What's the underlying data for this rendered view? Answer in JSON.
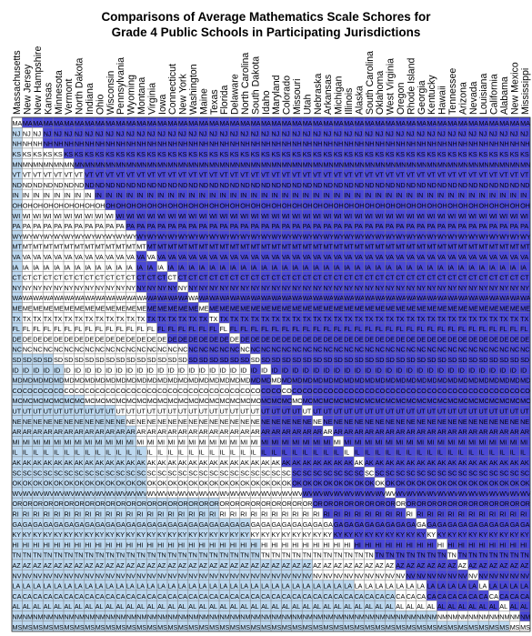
{
  "chart_data": {
    "type": "heatmap",
    "title": "Comparisons of Average Mathematics Scale Schores for",
    "subtitle": "Grade 4 Public Schools in Participating Jurisdictions",
    "columns": [
      "Massachusetts",
      "New Jersey",
      "New Hampshire",
      "Kansas",
      "Minnesota",
      "Vermont",
      "North Dakota",
      "Indiana",
      "Ohio",
      "Wisconsin",
      "Pennsylvania",
      "Wyoming",
      "Montana",
      "Virginia",
      "Iowa",
      "Connecticut",
      "New York",
      "Washington",
      "Maine",
      "Texas",
      "Florida",
      "Delaware",
      "North Carolina",
      "South Dakota",
      "Idaho",
      "Maryland",
      "Colorado",
      "Missouri",
      "Utah",
      "Nebraska",
      "Arkansas",
      "Michigan",
      "Illinois",
      "Alaska",
      "South Carolina",
      "Oklahoma",
      "West Virginia",
      "Oregon",
      "Rhode Island",
      "Georgia",
      "Kentucky",
      "Hawaii",
      "Tennessee",
      "Arizona",
      "Nevada",
      "Louisiana",
      "California",
      "Alabama",
      "New Mexico",
      "Mississippi"
    ],
    "row_codes": [
      "MA",
      "NJ",
      "NH",
      "KS",
      "MN",
      "VT",
      "ND",
      "IN",
      "OH",
      "WI",
      "PA",
      "WY",
      "MT",
      "VA",
      "IA",
      "CT",
      "NY",
      "WA",
      "ME",
      "TX",
      "FL",
      "DE",
      "NC",
      "SD",
      "ID",
      "MD",
      "CO",
      "MO",
      "UT",
      "NE",
      "AR",
      "MI",
      "IL",
      "AK",
      "SC",
      "OK",
      "WV",
      "OR",
      "RI",
      "GA",
      "KY",
      "HI",
      "TN",
      "AZ",
      "NV",
      "LA",
      "CA",
      "AL",
      "NM",
      "MS"
    ],
    "legend": {
      "higher": "#4a48d6",
      "not_significant": "#ffffff",
      "lower": "#bcd8f0",
      "self": "#ffffff"
    },
    "row_higher_from": [
      1,
      3,
      3,
      5,
      6,
      7,
      7,
      7,
      8,
      10,
      11,
      11,
      12,
      12,
      12,
      12,
      12,
      13,
      13,
      13,
      14,
      15,
      17,
      17,
      23,
      23,
      24,
      24,
      24,
      24,
      24,
      24,
      24,
      26,
      27,
      27,
      28,
      29,
      30,
      31,
      31,
      33,
      35,
      37,
      38,
      40,
      40,
      41,
      48,
      50
    ],
    "row_lower_until": [
      -1,
      0,
      0,
      0,
      0,
      0,
      0,
      0,
      0,
      0,
      0,
      0,
      0,
      0,
      0,
      0,
      0,
      0,
      0,
      0,
      0,
      0,
      0,
      3,
      4,
      4,
      4,
      6,
      9,
      10,
      11,
      11,
      12,
      12,
      12,
      12,
      12,
      19,
      19,
      22,
      22,
      23,
      23,
      28,
      28,
      32,
      36,
      36,
      40,
      47
    ]
  }
}
